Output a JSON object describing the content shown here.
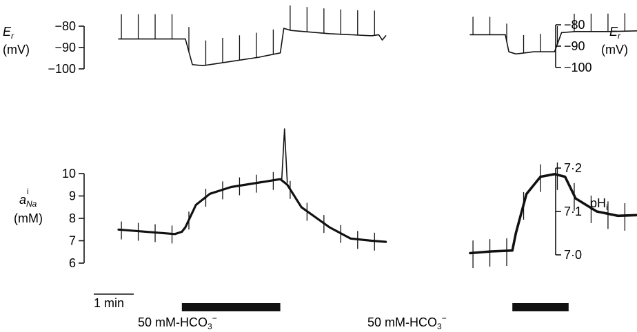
{
  "chart_data": [
    {
      "type": "line",
      "panel": "membrane-potential",
      "left_axis": {
        "title_main": "E",
        "title_sub": "r",
        "unit": "(mV)",
        "ticks": [
          -80,
          -90,
          -100
        ],
        "ylim": [
          -100,
          -80
        ]
      },
      "right_axis": {
        "title_main": "E",
        "title_sub": "r",
        "unit": "(mV)",
        "ticks": [
          -80,
          -90,
          -100
        ],
        "ylim": [
          -100,
          -80
        ]
      },
      "series": [
        {
          "trace": "left",
          "x": [
            0,
            0.85,
            0.95,
            1.05,
            1.2,
            1.6,
            2.0,
            2.3,
            2.35,
            2.45,
            3.0,
            3.6,
            3.7,
            3.75,
            3.8
          ],
          "y": [
            -86,
            -86,
            -86,
            -98,
            -98.5,
            -96.5,
            -94.5,
            -92.5,
            -81,
            -82,
            -83.5,
            -84.5,
            -84,
            -86.5,
            -84.5
          ]
        },
        {
          "trace": "right",
          "x": [
            5.0,
            5.3,
            5.5,
            5.55,
            5.65,
            5.9,
            6.2,
            6.3,
            6.5,
            7.0,
            7.6
          ],
          "y": [
            -84,
            -84,
            -84,
            -92,
            -93,
            -92,
            -92,
            -83,
            -82.5,
            -82.5,
            -82
          ]
        }
      ]
    },
    {
      "type": "line",
      "panel": "sodium-activity-and-pHi",
      "left_axis": {
        "title_main": "a",
        "title_sub": "Na",
        "title_sup": "i",
        "unit": "(mM)",
        "ticks": [
          10,
          9,
          8,
          7,
          6
        ],
        "ylim": [
          6,
          10
        ]
      },
      "right_axis": {
        "title_main": "pH",
        "title_sub": "i",
        "ticks": [
          "7·2",
          "7·1",
          "7·0"
        ],
        "ylim": [
          7.0,
          7.2
        ]
      },
      "series": [
        {
          "trace": "left",
          "quantity": "a_Na",
          "x": [
            0,
            0.8,
            0.9,
            0.95,
            1.1,
            1.3,
            1.6,
            2.0,
            2.3,
            2.4,
            2.6,
            3.0,
            3.3,
            3.6,
            3.8
          ],
          "y": [
            7.5,
            7.3,
            7.4,
            7.6,
            8.6,
            9.1,
            9.4,
            9.6,
            9.75,
            9.5,
            8.5,
            7.6,
            7.1,
            7.0,
            6.95
          ]
        },
        {
          "trace": "right",
          "quantity": "pHi",
          "x": [
            5.0,
            5.3,
            5.6,
            5.65,
            5.8,
            6.0,
            6.2,
            6.35,
            6.5,
            6.8,
            7.1,
            7.6
          ],
          "y": [
            7.004,
            7.008,
            7.01,
            7.05,
            7.14,
            7.18,
            7.186,
            7.18,
            7.13,
            7.1,
            7.09,
            7.093
          ]
        }
      ],
      "annotations": [
        {
          "type": "artifact-spike",
          "trace": "left",
          "x": 2.36,
          "y_top": 12.0
        }
      ]
    }
  ],
  "scale_bar": {
    "label": "1 min"
  },
  "stimulus_bars": [
    {
      "label_prefix": "50 mM-HCO",
      "label_sub": "3",
      "label_sup": "−",
      "x_start": 0.9,
      "x_end": 2.3
    },
    {
      "label_prefix": "50 mM-HCO",
      "label_sub": "3",
      "label_sup": "−",
      "x_start": 5.6,
      "x_end": 6.4
    }
  ],
  "colors": {
    "trace": "#111111",
    "background": "#ffffff"
  }
}
